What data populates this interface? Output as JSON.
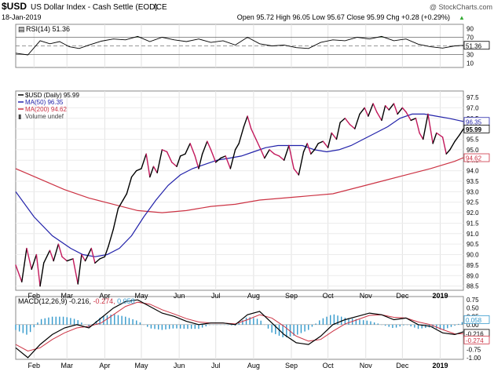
{
  "header": {
    "symbol": "$USD",
    "description": "US Dollar Index - Cash Settle (EOD)",
    "exchange": "ICE",
    "date": "18-Jan-2019",
    "watermark": "@ StockCharts.com",
    "ohlc": "Open 95.72  High 96.05  Low 95.67  Close 95.99  Chg +0.28 (+0.29%)",
    "ohlc_arrow": "▲"
  },
  "rsi": {
    "label": "RSI(14) 51.36",
    "ticks": [
      "90",
      "70",
      "50",
      "30",
      "10"
    ],
    "tick_values": [
      90,
      70,
      50,
      30,
      10
    ],
    "current_value": "51.36",
    "overbought": 70,
    "oversold": 30
  },
  "price_panel": {
    "legend": [
      {
        "label": "$USD (Daily) 95.99",
        "color": "#000000"
      },
      {
        "label": "MA(50) 96.35",
        "color": "#2222aa"
      },
      {
        "label": "MA(200) 94.62",
        "color": "#cc3344"
      },
      {
        "label": "Volume undef",
        "color": "#444444"
      }
    ],
    "ticks": [
      "97.5",
      "97.0",
      "96.5",
      "96.0",
      "95.5",
      "95.0",
      "94.5",
      "94.0",
      "93.5",
      "93.0",
      "92.5",
      "92.0",
      "91.5",
      "91.0",
      "90.5",
      "90.0",
      "89.5",
      "89.0",
      "88.5"
    ],
    "tick_values": [
      97.5,
      97.0,
      96.5,
      96.0,
      95.5,
      95.0,
      94.5,
      94.0,
      93.5,
      93.0,
      92.5,
      92.0,
      91.5,
      91.0,
      90.5,
      90.0,
      89.5,
      89.0,
      88.5
    ],
    "value_tags": [
      {
        "text": "96.35",
        "value": 96.35,
        "color": "#2222aa",
        "bold": false
      },
      {
        "text": "95.99",
        "value": 95.99,
        "color": "#000000",
        "bold": true
      },
      {
        "text": "94.62",
        "value": 94.62,
        "color": "#cc3344",
        "bold": false
      }
    ]
  },
  "macd": {
    "label_prefix": "MACD(12,26,9) ",
    "macd_value": "-0.216",
    "signal_value": "-0.274",
    "hist_value": "0.058",
    "ticks": [
      "0.75",
      "0.50",
      "0.25",
      "0.00",
      "-0.25",
      "-0.50",
      "-0.75",
      "-1.00"
    ],
    "tick_values": [
      0.75,
      0.5,
      0.25,
      0.0,
      -0.25,
      -0.5,
      -0.75,
      -1.0
    ],
    "value_tags": [
      {
        "text": "0.058",
        "value": 0.058,
        "color": "#3399cc"
      },
      {
        "text": "-0.216",
        "value": -0.216,
        "color": "#000000"
      },
      {
        "text": "-0.274",
        "value": -0.274,
        "color": "#cc3344"
      }
    ]
  },
  "x_axis": {
    "labels": [
      {
        "text": "Feb",
        "day": 15,
        "bold": false
      },
      {
        "text": "Mar",
        "day": 42,
        "bold": false
      },
      {
        "text": "Apr",
        "day": 73,
        "bold": false
      },
      {
        "text": "May",
        "day": 103,
        "bold": false
      },
      {
        "text": "Jun",
        "day": 134,
        "bold": false
      },
      {
        "text": "Jul",
        "day": 164,
        "bold": false
      },
      {
        "text": "Aug",
        "day": 195,
        "bold": false
      },
      {
        "text": "Sep",
        "day": 226,
        "bold": false
      },
      {
        "text": "Oct",
        "day": 256,
        "bold": false
      },
      {
        "text": "Nov",
        "day": 287,
        "bold": false
      },
      {
        "text": "Dec",
        "day": 317,
        "bold": false
      },
      {
        "text": "2019",
        "day": 348,
        "bold": true
      }
    ]
  },
  "chart_data": {
    "type": "line",
    "title": "$USD US Dollar Index - Cash Settle (EOD) ICE",
    "x_domain_days": [
      0,
      367
    ],
    "series": [
      {
        "name": "$USD (Daily)",
        "type": "line",
        "color": "#000000",
        "x": [
          0,
          5,
          9,
          13,
          17,
          20,
          23,
          28,
          31,
          35,
          38,
          42,
          47,
          51,
          54,
          57,
          62,
          65,
          69,
          73,
          76,
          80,
          84,
          88,
          91,
          95,
          99,
          103,
          107,
          110,
          113,
          116,
          120,
          124,
          128,
          132,
          135,
          139,
          143,
          147,
          150,
          153,
          157,
          160,
          164,
          168,
          172,
          176,
          180,
          183,
          187,
          190,
          193,
          197,
          201,
          204,
          208,
          212,
          216,
          220,
          224,
          228,
          232,
          236,
          239,
          242,
          245,
          248,
          252,
          256,
          259,
          263,
          266,
          270,
          274,
          278,
          282,
          286,
          289,
          293,
          296,
          300,
          303,
          306,
          310,
          313,
          317,
          320,
          324,
          328,
          331,
          334,
          338,
          342,
          345,
          350,
          353,
          356,
          360,
          364,
          367
        ],
        "values": [
          89.5,
          88.7,
          90.3,
          89.3,
          90.0,
          88.5,
          89.6,
          90.2,
          89.7,
          90.5,
          89.9,
          89.7,
          89.8,
          88.6,
          90.0,
          89.7,
          90.3,
          89.6,
          89.8,
          89.9,
          90.4,
          91.2,
          92.2,
          92.6,
          92.9,
          93.7,
          94.0,
          94.1,
          94.8,
          93.7,
          94.2,
          93.9,
          95.0,
          94.9,
          94.4,
          94.2,
          94.7,
          94.8,
          95.3,
          94.7,
          94.1,
          94.8,
          95.4,
          95.0,
          94.4,
          94.6,
          94.7,
          94.1,
          95.0,
          95.3,
          96.1,
          96.6,
          96.0,
          95.5,
          95.0,
          94.6,
          95.0,
          94.8,
          94.7,
          94.5,
          95.2,
          94.1,
          93.8,
          94.9,
          95.3,
          94.8,
          95.0,
          95.3,
          95.4,
          95.1,
          95.8,
          95.5,
          96.3,
          96.5,
          96.2,
          96.0,
          96.7,
          97.0,
          96.6,
          97.2,
          96.8,
          96.4,
          97.1,
          96.9,
          97.2,
          96.7,
          97.0,
          96.8,
          96.4,
          96.5,
          95.8,
          95.5,
          96.7,
          95.3,
          95.8,
          95.6,
          94.8,
          95.0,
          95.4,
          95.72,
          95.99
        ]
      },
      {
        "name": "MA(50)",
        "color": "#2222aa",
        "x": [
          0,
          15,
          30,
          45,
          55,
          65,
          75,
          85,
          95,
          105,
          115,
          125,
          135,
          145,
          155,
          165,
          175,
          185,
          195,
          205,
          215,
          225,
          235,
          245,
          255,
          265,
          275,
          285,
          295,
          305,
          315,
          325,
          335,
          345,
          355,
          367
        ],
        "values": [
          93.0,
          91.8,
          90.9,
          90.3,
          90.0,
          89.9,
          90.0,
          90.3,
          90.9,
          91.8,
          92.6,
          93.3,
          93.8,
          94.1,
          94.3,
          94.5,
          94.6,
          94.7,
          94.9,
          95.1,
          95.2,
          95.2,
          95.2,
          95.0,
          94.9,
          95.0,
          95.2,
          95.5,
          95.8,
          96.1,
          96.5,
          96.7,
          96.7,
          96.6,
          96.5,
          96.35
        ]
      },
      {
        "name": "MA(200)",
        "color": "#cc3344",
        "x": [
          0,
          20,
          40,
          60,
          80,
          100,
          120,
          140,
          160,
          180,
          200,
          220,
          240,
          260,
          280,
          300,
          320,
          340,
          360,
          367
        ],
        "values": [
          94.1,
          93.6,
          93.1,
          92.7,
          92.4,
          92.1,
          92.0,
          92.1,
          92.3,
          92.4,
          92.6,
          92.7,
          92.8,
          92.9,
          93.2,
          93.5,
          93.8,
          94.1,
          94.45,
          94.62
        ]
      },
      {
        "name": "RSI(14)",
        "panel": "rsi",
        "color": "#000000",
        "x": [
          0,
          10,
          20,
          28,
          36,
          44,
          52,
          60,
          70,
          80,
          90,
          100,
          110,
          120,
          130,
          140,
          150,
          160,
          170,
          180,
          190,
          200,
          210,
          220,
          230,
          240,
          250,
          260,
          270,
          280,
          290,
          300,
          310,
          320,
          330,
          340,
          350,
          360,
          367
        ],
        "values": [
          33,
          29,
          62,
          55,
          60,
          48,
          44,
          52,
          61,
          66,
          64,
          72,
          60,
          70,
          64,
          60,
          66,
          58,
          62,
          52,
          70,
          55,
          50,
          52,
          46,
          44,
          58,
          64,
          62,
          70,
          66,
          72,
          62,
          66,
          54,
          48,
          45,
          50,
          51.36
        ]
      },
      {
        "name": "MACD",
        "panel": "macd",
        "color": "#000000",
        "x": [
          0,
          10,
          20,
          30,
          40,
          50,
          60,
          70,
          80,
          90,
          100,
          110,
          120,
          130,
          140,
          150,
          160,
          170,
          180,
          190,
          200,
          210,
          220,
          230,
          240,
          250,
          260,
          270,
          280,
          290,
          300,
          310,
          320,
          330,
          340,
          350,
          360,
          367
        ],
        "values": [
          -0.7,
          -1.0,
          -0.6,
          -0.3,
          -0.1,
          0.0,
          -0.1,
          0.2,
          0.5,
          0.7,
          0.75,
          0.55,
          0.35,
          0.25,
          0.1,
          0.0,
          0.05,
          0.05,
          0.0,
          0.3,
          0.4,
          0.05,
          -0.3,
          -0.55,
          -0.6,
          -0.35,
          0.0,
          0.15,
          0.25,
          0.35,
          0.3,
          0.15,
          0.2,
          0.0,
          -0.05,
          -0.25,
          -0.3,
          -0.216
        ]
      },
      {
        "name": "MACD signal",
        "panel": "macd",
        "color": "#cc3344",
        "x": [
          0,
          10,
          20,
          30,
          40,
          50,
          60,
          70,
          80,
          90,
          100,
          110,
          120,
          130,
          140,
          150,
          160,
          170,
          180,
          190,
          200,
          210,
          220,
          230,
          240,
          250,
          260,
          270,
          280,
          290,
          300,
          310,
          320,
          330,
          340,
          350,
          360,
          367
        ],
        "values": [
          -0.6,
          -0.8,
          -0.7,
          -0.45,
          -0.25,
          -0.1,
          -0.05,
          0.05,
          0.3,
          0.55,
          0.68,
          0.62,
          0.45,
          0.32,
          0.18,
          0.08,
          0.05,
          0.05,
          0.02,
          0.15,
          0.3,
          0.2,
          -0.05,
          -0.35,
          -0.5,
          -0.45,
          -0.2,
          0.02,
          0.15,
          0.28,
          0.3,
          0.22,
          0.2,
          0.08,
          0.0,
          -0.15,
          -0.28,
          -0.274
        ]
      }
    ],
    "ylim_price": [
      88.3,
      97.8
    ],
    "ylim_rsi": [
      0,
      100
    ],
    "ylim_macd": [
      -1.05,
      0.85
    ],
    "grid": true
  }
}
